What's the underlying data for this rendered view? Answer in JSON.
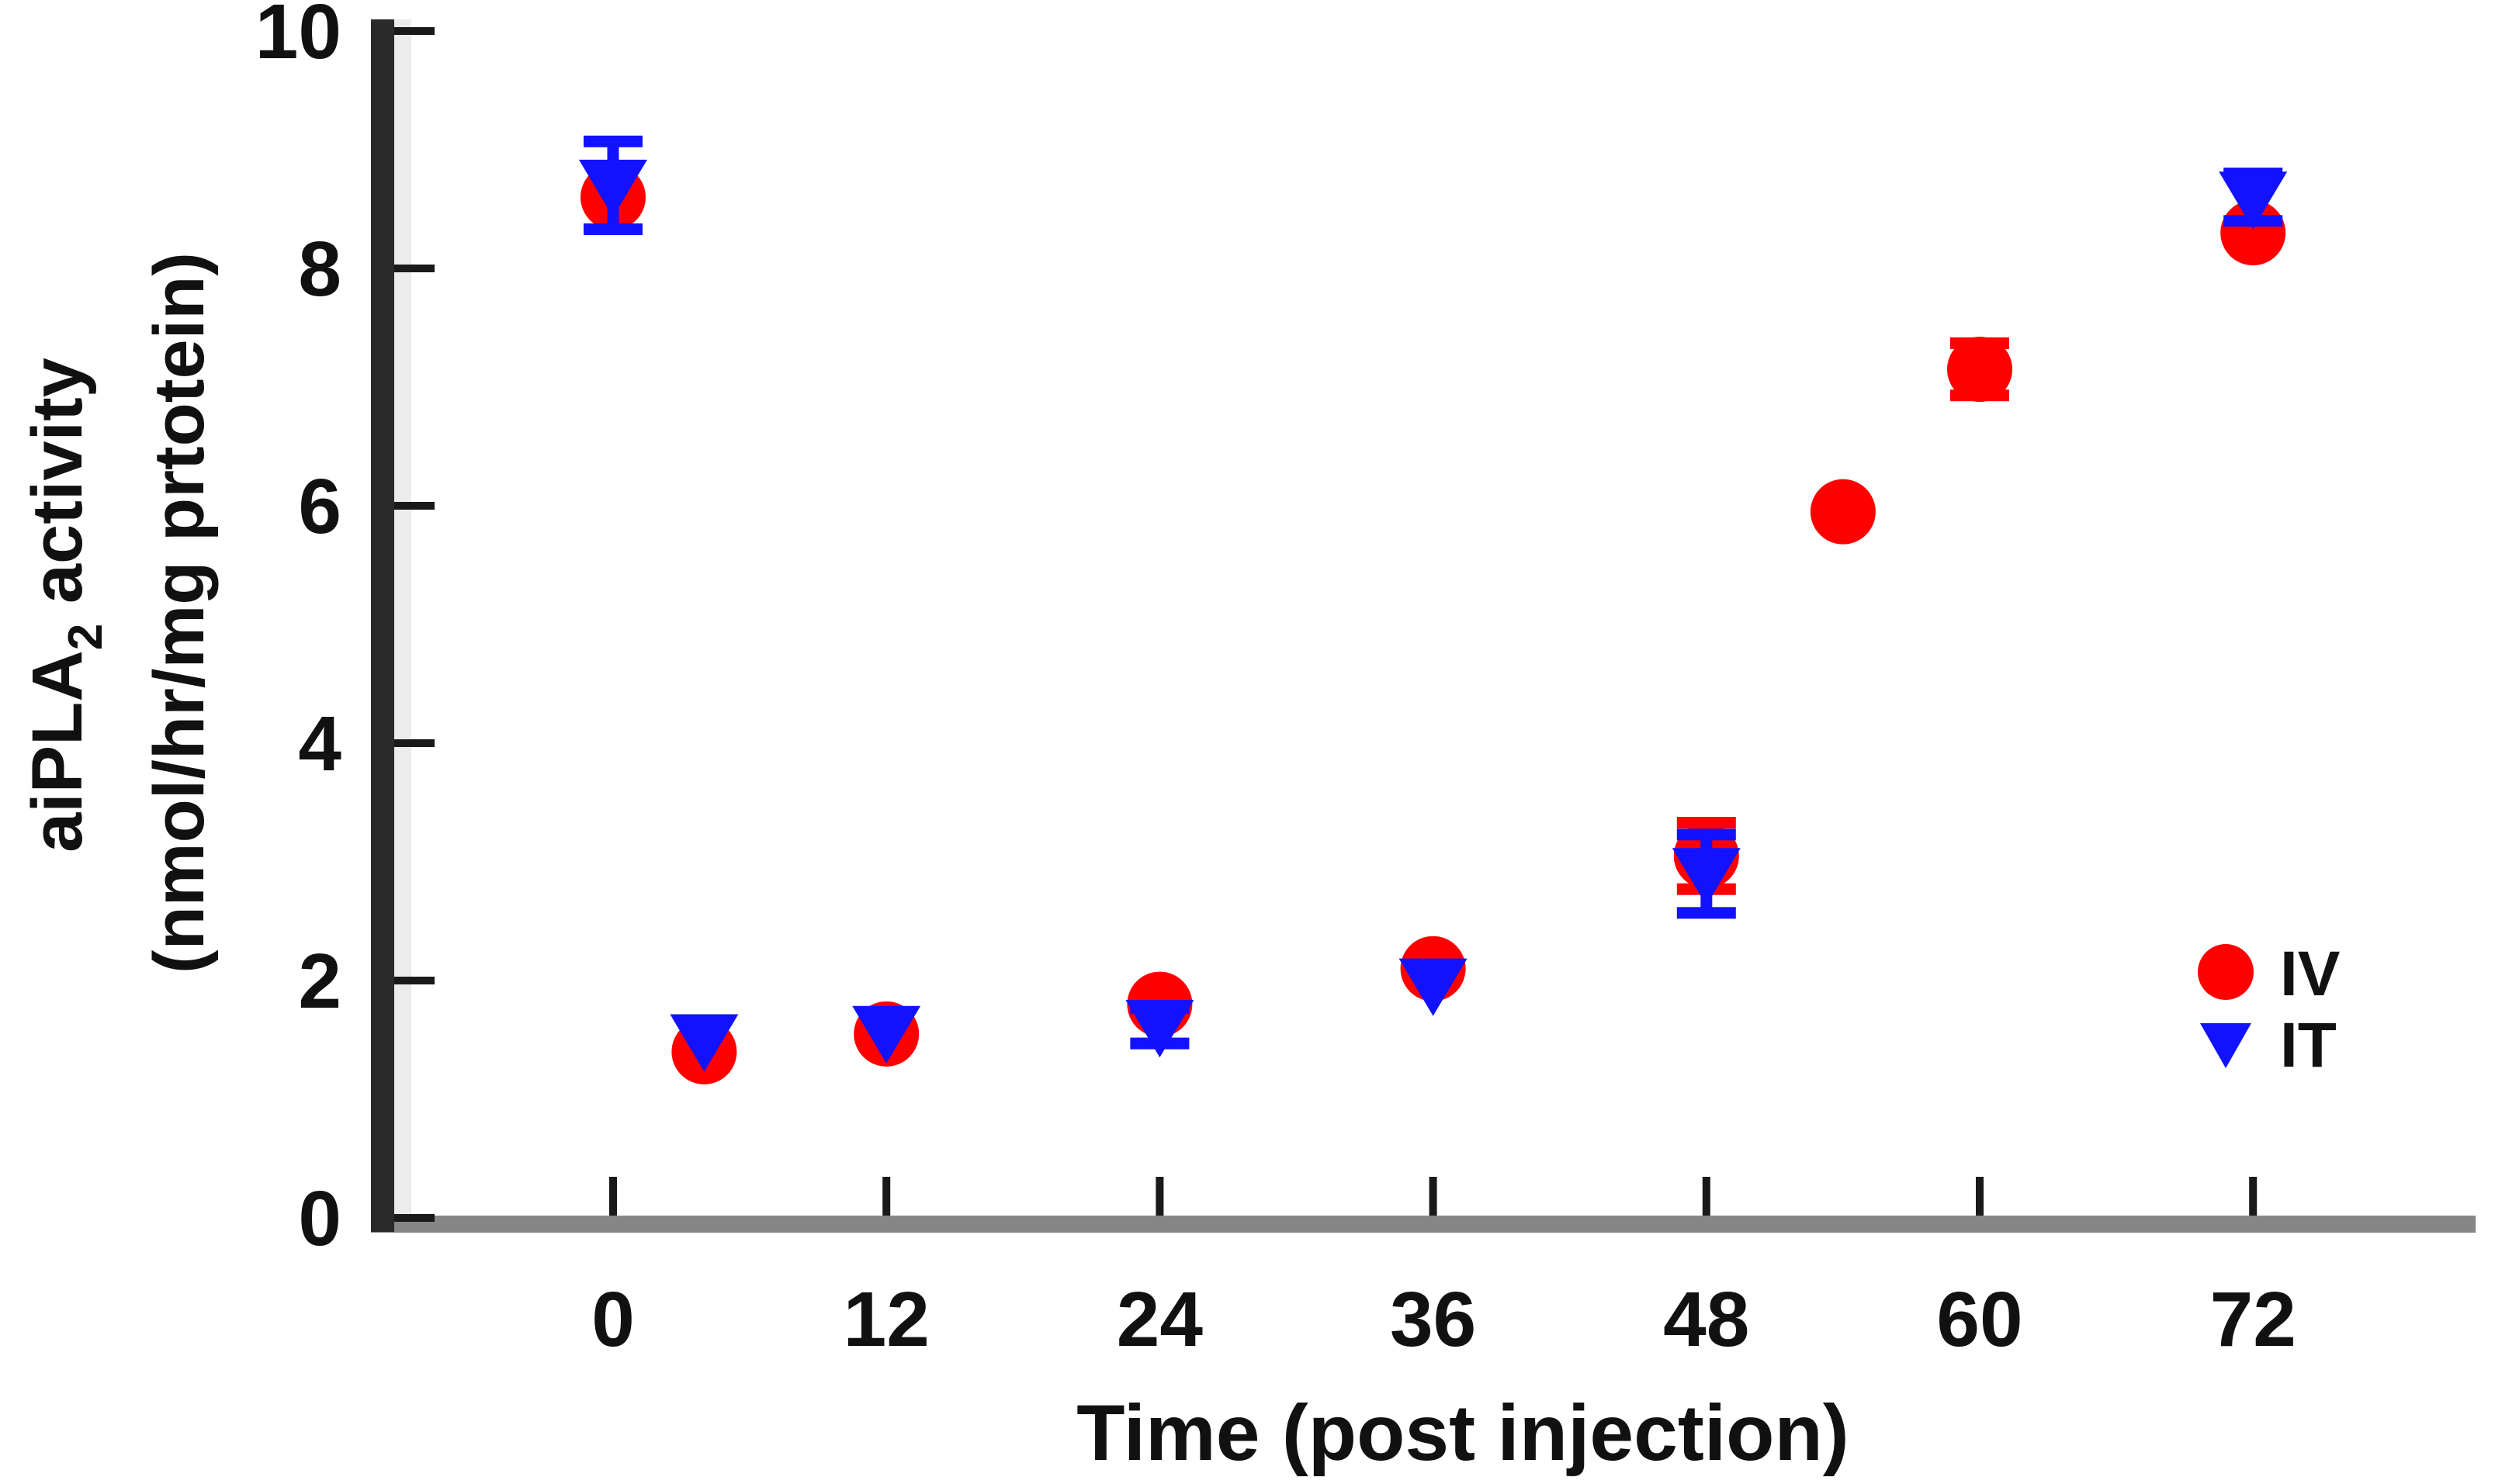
{
  "figure": {
    "background": "#ffffff"
  },
  "chart_data": {
    "type": "scatter",
    "title": "",
    "xlabel": "Time (post injection)",
    "ylabel": {
      "line1_pre": "aiPLA",
      "line1_sub": "2",
      "line1_post": " activity",
      "line2": "(nmol/hr/mg prtotein)"
    },
    "x_ticks": [
      0,
      12,
      24,
      36,
      48,
      60,
      72
    ],
    "y_ticks": [
      0,
      2,
      4,
      6,
      8,
      10
    ],
    "xlim": [
      -10.6,
      81.8
    ],
    "ylim": [
      0,
      10
    ],
    "grid": false,
    "axis_colors": {
      "x_axis": "#868686",
      "y_axis": "#2a2a2a",
      "ticks": "#1a1a1a"
    },
    "legend": {
      "position": "inside-lower-right",
      "entries": [
        {
          "label": "IV",
          "marker": "circle",
          "color": "#ff0000"
        },
        {
          "label": "IT",
          "marker": "triangle-down",
          "color": "#1212ff"
        }
      ]
    },
    "series": [
      {
        "name": "IV",
        "marker": "circle",
        "color": "#ff0000",
        "points": [
          {
            "t": 0,
            "v": 8.6
          },
          {
            "t": 4,
            "v": 1.4
          },
          {
            "t": 12,
            "v": 1.55
          },
          {
            "t": 24,
            "v": 1.8
          },
          {
            "t": 36,
            "v": 2.1
          },
          {
            "t": 48,
            "v": 3.05,
            "err": 0.28
          },
          {
            "t": 54,
            "v": 5.95
          },
          {
            "t": 60,
            "v": 7.15,
            "err": 0.22
          },
          {
            "t": 72,
            "v": 8.3
          }
        ]
      },
      {
        "name": "IT",
        "marker": "triangle-down",
        "color": "#1212ff",
        "points": [
          {
            "t": 0,
            "v": 8.7,
            "err": 0.37
          },
          {
            "t": 4,
            "v": 1.5
          },
          {
            "t": 12,
            "v": 1.57
          },
          {
            "t": 24,
            "v": 1.62,
            "err": 0.15
          },
          {
            "t": 36,
            "v": 1.97
          },
          {
            "t": 48,
            "v": 2.9,
            "err": 0.33
          },
          {
            "t": 72,
            "v": 8.6,
            "err": 0.2
          }
        ]
      }
    ]
  }
}
